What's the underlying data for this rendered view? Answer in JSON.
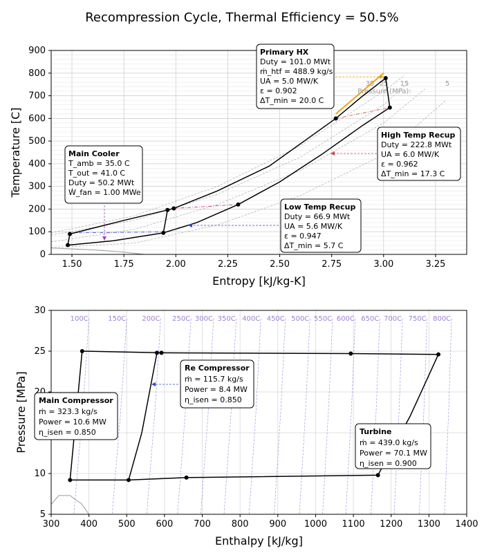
{
  "title": "Recompression Cycle, Thermal Efficiency = 50.5%",
  "chart_data": [
    {
      "type": "line",
      "name": "ts-diagram",
      "xlabel": "Entropy [kJ/kg-K]",
      "ylabel": "Temperature [C]",
      "xlim": [
        1.4,
        3.4
      ],
      "ylim": [
        0,
        900
      ],
      "xticks": [
        1.5,
        1.75,
        2.0,
        2.25,
        2.5,
        2.75,
        3.0,
        3.25
      ],
      "xtick_labels": [
        "1.50",
        "1.75",
        "2.00",
        "2.25",
        "2.50",
        "2.75",
        "3.00",
        "3.25"
      ],
      "yticks": [
        0,
        100,
        200,
        300,
        400,
        500,
        600,
        700,
        800,
        900
      ],
      "ytick_labels": [
        "0",
        "100",
        "200",
        "300",
        "400",
        "500",
        "600",
        "700",
        "800",
        "900"
      ],
      "grid": true,
      "isobar_labels": [
        "35",
        "25",
        "15",
        "5"
      ],
      "isobar_title": "Pressure (MPa):",
      "state_points": [
        {
          "s": 1.48,
          "T": 41
        },
        {
          "s": 1.49,
          "T": 90
        },
        {
          "s": 1.94,
          "T": 95
        },
        {
          "s": 1.96,
          "T": 196
        },
        {
          "s": 1.99,
          "T": 203
        },
        {
          "s": 2.3,
          "T": 220
        },
        {
          "s": 2.77,
          "T": 600
        },
        {
          "s": 3.01,
          "T": 778
        },
        {
          "s": 3.03,
          "T": 648
        }
      ],
      "cycle_path": [
        [
          1.48,
          41
        ],
        [
          1.49,
          90
        ],
        [
          1.75,
          150
        ],
        [
          1.96,
          196
        ],
        [
          1.99,
          203
        ],
        [
          2.2,
          280
        ],
        [
          2.45,
          390
        ],
        [
          2.77,
          600
        ],
        [
          2.9,
          700
        ],
        [
          3.01,
          778
        ],
        [
          3.03,
          648
        ],
        [
          2.9,
          570
        ],
        [
          2.7,
          440
        ],
        [
          2.5,
          320
        ],
        [
          2.3,
          220
        ],
        [
          2.1,
          140
        ],
        [
          1.94,
          95
        ],
        [
          1.7,
          60
        ],
        [
          1.48,
          41
        ]
      ],
      "recompress_branch": [
        [
          1.94,
          95
        ],
        [
          1.96,
          196
        ]
      ],
      "primary_hx_line": [
        [
          2.77,
          620
        ],
        [
          3.0,
          800
        ]
      ],
      "annotations": [
        {
          "name": "primary-hx",
          "title": "Primary HX",
          "lines": [
            "Duty = 101.0 MWt",
            "ṁ_htf = 488.9 kg/s",
            "UA = 5.0 MW/K",
            "ε = 0.902",
            "ΔT_min = 20.0 C"
          ]
        },
        {
          "name": "main-cooler",
          "title": "Main Cooler",
          "lines": [
            "T_amb = 35.0 C",
            "T_out = 41.0 C",
            "Duty = 50.2 MWt",
            "Ẇ_fan = 1.00 MWe"
          ]
        },
        {
          "name": "high-temp-recup",
          "title": "High Temp Recup",
          "lines": [
            "Duty = 222.8 MWt",
            "UA = 6.0 MW/K",
            "ε = 0.962",
            "ΔT_min = 17.3 C"
          ]
        },
        {
          "name": "low-temp-recup",
          "title": "Low Temp Recup",
          "lines": [
            "Duty = 66.9 MWt",
            "UA = 5.6 MW/K",
            "ε = 0.947",
            "ΔT_min = 5.7 C"
          ]
        }
      ]
    },
    {
      "type": "line",
      "name": "ph-diagram",
      "xlabel": "Enthalpy [kJ/kg]",
      "ylabel": "Pressure [MPa]",
      "xlim": [
        300,
        1400
      ],
      "ylim": [
        5,
        30
      ],
      "xticks": [
        300,
        400,
        500,
        600,
        700,
        800,
        900,
        1000,
        1100,
        1200,
        1300,
        1400
      ],
      "xtick_labels": [
        "300",
        "400",
        "500",
        "600",
        "700",
        "800",
        "900",
        "1000",
        "1100",
        "1200",
        "1300",
        "1400"
      ],
      "yticks": [
        5,
        10,
        15,
        20,
        25,
        30
      ],
      "ytick_labels": [
        "5",
        "10",
        "15",
        "20",
        "25",
        "30"
      ],
      "grid": true,
      "isotherm_labels": [
        "100C",
        "150C",
        "200C",
        "250C",
        "300C",
        "350C",
        "400C",
        "450C",
        "500C",
        "550C",
        "600C",
        "650C",
        "700C",
        "750C",
        "800C"
      ],
      "isotherm_h": [
        400,
        500,
        590,
        670,
        730,
        790,
        855,
        920,
        985,
        1045,
        1105,
        1170,
        1230,
        1295,
        1360
      ],
      "state_points": [
        {
          "h": 350,
          "P": 9.2
        },
        {
          "h": 382,
          "P": 25.0
        },
        {
          "h": 505,
          "P": 9.2
        },
        {
          "h": 580,
          "P": 24.8
        },
        {
          "h": 592,
          "P": 24.8
        },
        {
          "h": 658,
          "P": 9.5
        },
        {
          "h": 1093,
          "P": 24.7
        },
        {
          "h": 1165,
          "P": 9.8
        },
        {
          "h": 1325,
          "P": 24.6
        }
      ],
      "cycle_path": [
        [
          350,
          9.2
        ],
        [
          382,
          25.0
        ],
        [
          592,
          24.8
        ],
        [
          1093,
          24.7
        ],
        [
          1325,
          24.6
        ],
        [
          1250,
          17.0
        ],
        [
          1165,
          9.8
        ],
        [
          658,
          9.5
        ],
        [
          505,
          9.2
        ],
        [
          350,
          9.2
        ]
      ],
      "recompress_branch": [
        [
          505,
          9.2
        ],
        [
          540,
          15.0
        ],
        [
          580,
          24.8
        ]
      ],
      "annotations": [
        {
          "name": "main-compressor",
          "title": "Main Compressor",
          "lines": [
            "ṁ = 323.3 kg/s",
            "Power = 10.6 MW",
            "η_isen = 0.850"
          ]
        },
        {
          "name": "re-compressor",
          "title": "Re Compressor",
          "lines": [
            "ṁ = 115.7 kg/s",
            "Power = 8.4 MW",
            "η_isen = 0.850"
          ]
        },
        {
          "name": "turbine",
          "title": "Turbine",
          "lines": [
            "ṁ = 439.0 kg/s",
            "Power = 70.1 MW",
            "η_isen = 0.900"
          ]
        }
      ]
    }
  ]
}
